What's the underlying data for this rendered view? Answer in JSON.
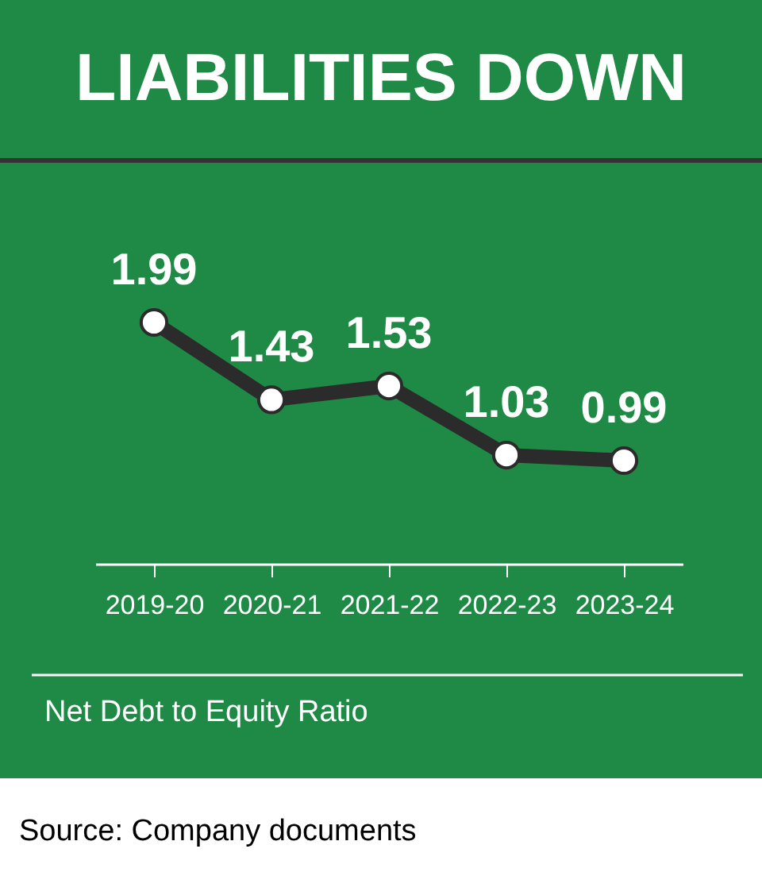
{
  "chart_data": {
    "type": "line",
    "title": "LIABILITIES DOWN",
    "categories": [
      "2019-20",
      "2020-21",
      "2021-22",
      "2022-23",
      "2023-24"
    ],
    "series": [
      {
        "color": "#2b2b2b",
        "values": [
          1.99,
          1.43,
          1.53,
          1.03,
          0.99
        ]
      }
    ],
    "data_labels": true,
    "marker": "circle",
    "line_style": "solid",
    "annotations": [
      "Net Debt to Equity Ratio",
      "Source: Company documents"
    ]
  }
}
